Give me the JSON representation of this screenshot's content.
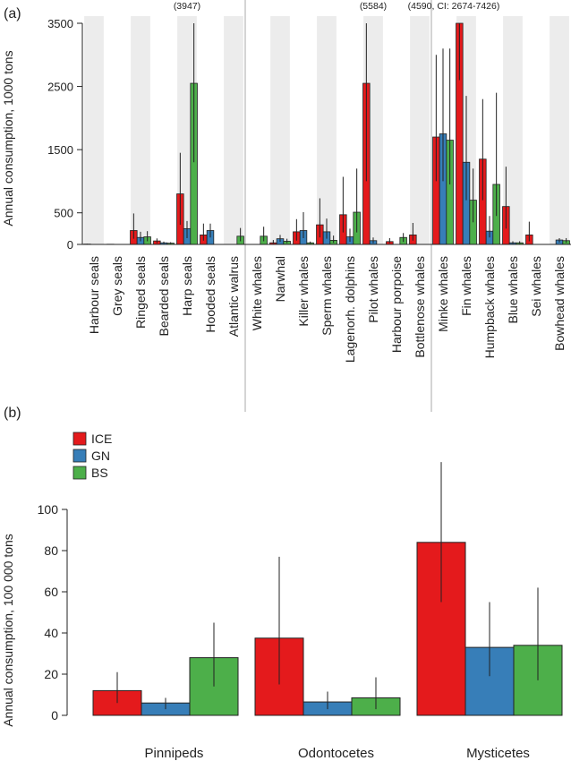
{
  "figure": {
    "panel_a_label": "(a)",
    "panel_b_label": "(b)"
  },
  "chart_data": [
    {
      "panel": "(a)",
      "type": "bar",
      "ylabel": "Annual consumption, 1000 tons",
      "ylim": [
        0,
        3500
      ],
      "yticks": [
        0,
        500,
        1500,
        2500,
        3500
      ],
      "grid": false,
      "categories": [
        "Harbour seals",
        "Grey seals",
        "Ringed seals",
        "Bearded seals",
        "Harp seals",
        "Hooded seals",
        "Atlantic walrus",
        "White whales",
        "Narwhal",
        "Killer whales",
        "Sperm whales",
        "Lagenorh. dolphins",
        "Pilot whales",
        "Harbour porpoise",
        "Bottlenose whales",
        "Minke whales",
        "Fin whales",
        "Humpback whales",
        "Blue whales",
        "Sei whales",
        "Bowhead whales"
      ],
      "group_dividers_after": [
        6,
        14
      ],
      "series": [
        {
          "name": "ICE",
          "color": "#e41a1c",
          "values": [
            5,
            3,
            220,
            55,
            800,
            150,
            0,
            0,
            25,
            200,
            310,
            470,
            2550,
            45,
            150,
            1700,
            3600,
            1350,
            600,
            150,
            0
          ],
          "lower": [
            0,
            0,
            90,
            20,
            310,
            60,
            0,
            0,
            10,
            60,
            110,
            190,
            1000,
            20,
            60,
            1000,
            2600,
            700,
            250,
            50,
            0
          ],
          "upper": [
            10,
            6,
            490,
            95,
            1450,
            330,
            0,
            0,
            70,
            400,
            730,
            1070,
            3600,
            100,
            340,
            3000,
            3600,
            2300,
            1230,
            360,
            0
          ]
        },
        {
          "name": "GN",
          "color": "#377eb8",
          "values": [
            0,
            0,
            110,
            25,
            250,
            220,
            0,
            0,
            90,
            220,
            200,
            120,
            60,
            0,
            0,
            1750,
            1300,
            210,
            25,
            0,
            70
          ],
          "lower": [
            0,
            0,
            50,
            10,
            100,
            110,
            0,
            0,
            40,
            100,
            90,
            40,
            20,
            0,
            0,
            1000,
            700,
            110,
            10,
            0,
            30
          ],
          "upper": [
            0,
            0,
            200,
            45,
            370,
            330,
            0,
            0,
            150,
            510,
            410,
            250,
            110,
            0,
            0,
            3100,
            2350,
            450,
            50,
            0,
            100
          ]
        },
        {
          "name": "BS",
          "color": "#4daf4a",
          "values": [
            0,
            0,
            120,
            20,
            2550,
            0,
            130,
            130,
            50,
            25,
            65,
            510,
            0,
            110,
            0,
            1650,
            700,
            950,
            25,
            0,
            60
          ],
          "lower": [
            0,
            0,
            50,
            10,
            1300,
            0,
            50,
            50,
            20,
            10,
            25,
            190,
            0,
            40,
            0,
            950,
            350,
            450,
            10,
            0,
            25
          ],
          "upper": [
            0,
            0,
            210,
            35,
            3600,
            0,
            260,
            280,
            90,
            45,
            140,
            1200,
            0,
            180,
            0,
            3100,
            1200,
            2400,
            50,
            0,
            100
          ]
        }
      ],
      "annotations": [
        {
          "category": "Harp seals",
          "text": "(3947)"
        },
        {
          "category": "Pilot whales",
          "text": "(5584)"
        },
        {
          "category": "Minke whales",
          "text": "(4590, CI: 2674-7426)"
        }
      ]
    },
    {
      "panel": "(b)",
      "type": "bar",
      "ylabel": "Annual consumption, 100 000 tons",
      "ylim": [
        0,
        100
      ],
      "yticks": [
        0,
        20,
        40,
        60,
        80,
        100
      ],
      "grid": false,
      "legend_position": "top-left",
      "categories": [
        "Pinnipeds",
        "Odontocetes",
        "Mysticetes"
      ],
      "series": [
        {
          "name": "ICE",
          "color": "#e41a1c",
          "values": [
            12,
            37.5,
            84
          ],
          "lower": [
            6,
            15,
            55
          ],
          "upper": [
            21,
            77,
            123
          ]
        },
        {
          "name": "GN",
          "color": "#377eb8",
          "values": [
            6,
            6.5,
            33
          ],
          "lower": [
            3,
            3,
            19
          ],
          "upper": [
            8.5,
            11.5,
            55
          ]
        },
        {
          "name": "BS",
          "color": "#4daf4a",
          "values": [
            28,
            8.5,
            34
          ],
          "lower": [
            14,
            3,
            17
          ],
          "upper": [
            45,
            18.5,
            62
          ]
        }
      ]
    }
  ]
}
